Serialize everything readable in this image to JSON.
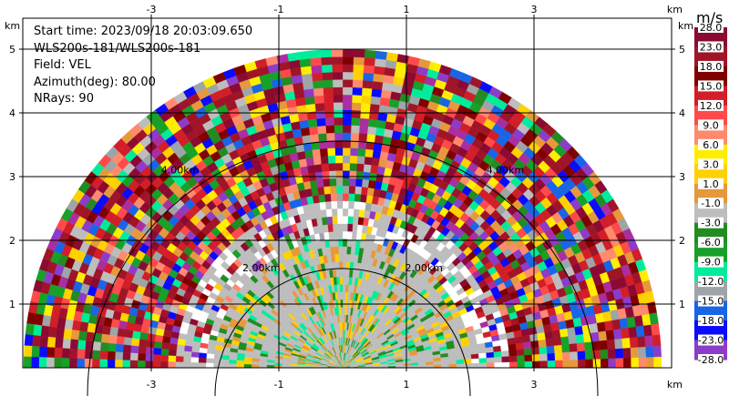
{
  "info": {
    "start_time": "Start time: 2023/09/18 20:03:09.650",
    "instrument": "WLS200s-181/WLS200s-181",
    "field": "Field: VEL",
    "azimuth": "Azimuth(deg): 80.00",
    "nrays": "NRays: 90"
  },
  "axes": {
    "x_ticks": [
      "-3",
      "-1",
      "1",
      "3"
    ],
    "y_ticks": [
      "1",
      "2",
      "3",
      "4",
      "5"
    ],
    "x_unit": "km",
    "y_unit": "km"
  },
  "range_rings": {
    "values_km": [
      2,
      4
    ],
    "labels": [
      "2.00km",
      "4.00km"
    ]
  },
  "colorbar": {
    "unit": "m/s",
    "labels": [
      "28.0",
      "23.0",
      "18.0",
      "15.0",
      "12.0",
      "9.0",
      "6.0",
      "3.0",
      "1.0",
      "-1.0",
      "-3.0",
      "-6.0",
      "-9.0",
      "-12.0",
      "-15.0",
      "-18.0",
      "-23.0",
      "-28.0"
    ],
    "colors": [
      "#8b0a32",
      "#a01428",
      "#800000",
      "#d21e28",
      "#ff4a4a",
      "#ff8a6e",
      "#ffee00",
      "#ffd100",
      "#e6983c",
      "#bdbdbd",
      "#228b22",
      "#18a028",
      "#00ec9a",
      "#9ea4a8",
      "#1a64e6",
      "#0a0aff",
      "#8c3cc8",
      "#aa2ea0"
    ]
  },
  "chart_data": {
    "type": "heatmap",
    "title": "",
    "xlabel": "km",
    "ylabel": "km",
    "xlim": [
      -4.2,
      4.2
    ],
    "ylim": [
      0,
      5.6
    ],
    "x_ticks": [
      -3,
      -1,
      1,
      3
    ],
    "y_ticks": [
      1,
      2,
      3,
      4,
      5
    ],
    "range_rings_km": [
      2,
      4
    ],
    "max_range_km": 5.0,
    "field": "VEL",
    "azimuth_deg": 80.0,
    "nrays": 90,
    "colorbar_range": [
      -28,
      28
    ],
    "colorbar_unit": "m/s",
    "grid": true,
    "near_field_km": 2.0,
    "near_field_dominant": "-1.0 to 1.0",
    "far_field_note": "noisy, full color spread"
  }
}
